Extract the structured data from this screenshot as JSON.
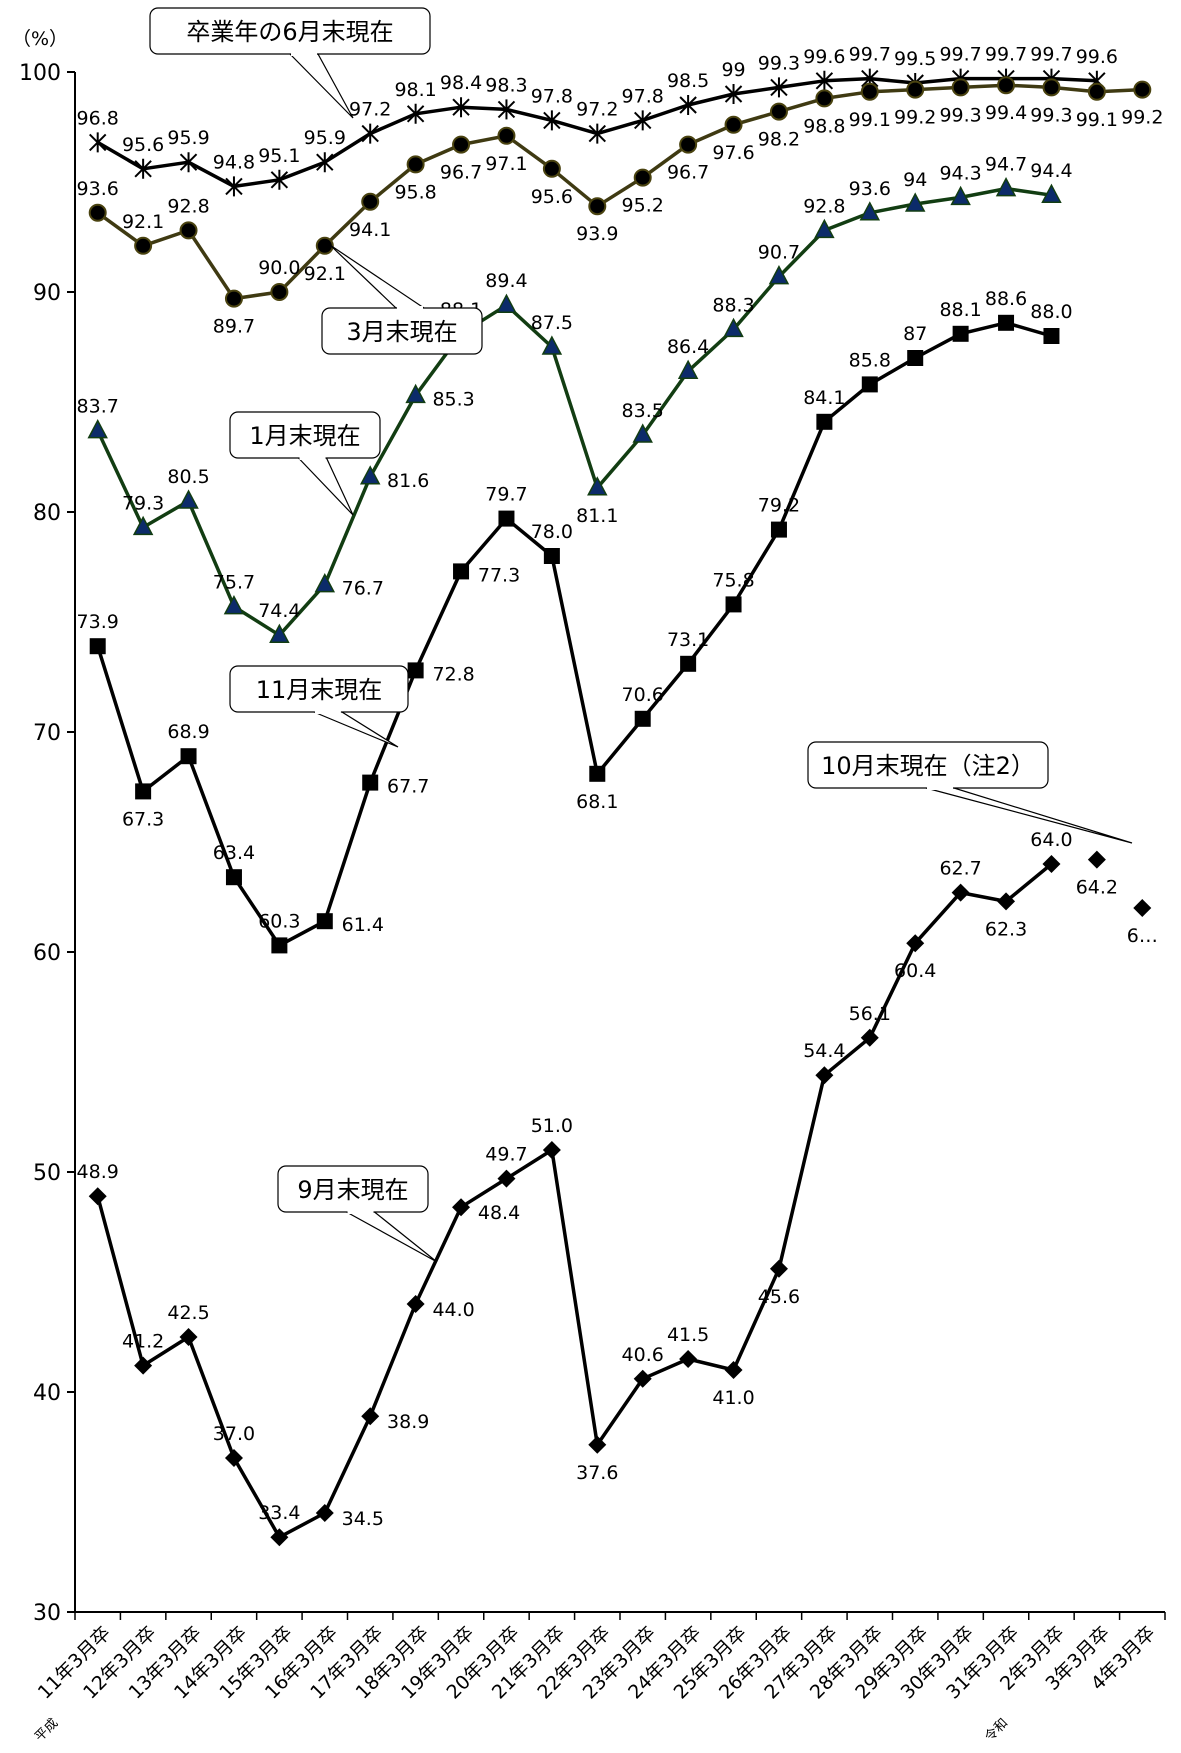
{
  "chart_data": {
    "type": "line",
    "unit": "（%）",
    "ylim": [
      30,
      100
    ],
    "yticks": [
      30,
      40,
      50,
      60,
      70,
      80,
      90,
      100
    ],
    "categories": [
      "11年3月卒",
      "12年3月卒",
      "13年3月卒",
      "14年3月卒",
      "15年3月卒",
      "16年3月卒",
      "17年3月卒",
      "18年3月卒",
      "19年3月卒",
      "20年3月卒",
      "21年3月卒",
      "22年3月卒",
      "23年3月卒",
      "24年3月卒",
      "25年3月卒",
      "26年3月卒",
      "27年3月卒",
      "28年3月卒",
      "29年3月卒",
      "30年3月卒",
      "31年3月卒",
      "2年3月卒",
      "3年3月卒",
      "4年3月卒"
    ],
    "era_labels": {
      "heisei": "平成",
      "reiwa": "令和"
    },
    "series": [
      {
        "name": "卒業年の6月末現在",
        "marker": "star",
        "line": "#000000",
        "fill": "#000000",
        "values": [
          96.8,
          95.6,
          95.9,
          94.8,
          95.1,
          95.9,
          97.2,
          98.1,
          98.4,
          98.3,
          97.8,
          97.2,
          97.8,
          98.5,
          99,
          99.3,
          99.6,
          99.7,
          99.5,
          99.7,
          99.7,
          99.7,
          99.6,
          null
        ],
        "labels": [
          "96.8",
          "95.6",
          "95.9",
          "94.8",
          "95.1",
          "95.9",
          "97.2",
          "98.1",
          "98.4",
          "98.3",
          "97.8",
          "97.2",
          "97.8",
          "98.5",
          "99",
          "99.3",
          "99.6",
          "99.7",
          "99.5",
          "99.7",
          "99.7",
          "99.7",
          "99.6",
          null
        ]
      },
      {
        "name": "3月末現在",
        "marker": "circle",
        "line": "#3f3a12",
        "fill": "#000000",
        "values": [
          93.6,
          92.1,
          92.8,
          89.7,
          90.0,
          92.1,
          94.1,
          95.8,
          96.7,
          97.1,
          95.6,
          93.9,
          95.2,
          96.7,
          97.6,
          98.2,
          98.8,
          99.1,
          99.2,
          99.3,
          99.4,
          99.3,
          99.1,
          99.2
        ],
        "labels": [
          "93.6",
          "92.1",
          "92.8",
          "89.7",
          "90.0",
          "92.1",
          "94.1",
          "95.8",
          "96.7",
          "97.1",
          "95.6",
          "93.9",
          "95.2",
          "96.7",
          "97.6",
          "98.2",
          "98.8",
          "99.1",
          "99.2",
          "99.3",
          "99.4",
          "99.3",
          "99.1",
          "99.2"
        ]
      },
      {
        "name": "1月末現在",
        "marker": "triangle",
        "line": "#123d12",
        "fill": "#0c2b6a",
        "values": [
          83.7,
          79.3,
          80.5,
          75.7,
          74.4,
          76.7,
          81.6,
          85.3,
          88.1,
          89.4,
          87.5,
          81.1,
          83.5,
          86.4,
          88.3,
          90.7,
          92.8,
          93.6,
          94,
          94.3,
          94.7,
          94.4,
          null,
          null
        ],
        "labels": [
          "83.7",
          "79.3",
          "80.5",
          "75.7",
          "74.4",
          "76.7",
          "81.6",
          "85.3",
          "88.1",
          "89.4",
          "87.5",
          "81.1",
          "83.5",
          "86.4",
          "88.3",
          "90.7",
          "92.8",
          "93.6",
          "94",
          "94.3",
          "94.7",
          "94.4",
          null,
          null
        ]
      },
      {
        "name": "11月末現在",
        "marker": "square",
        "line": "#000000",
        "fill": "#000000",
        "values": [
          73.9,
          67.3,
          68.9,
          63.4,
          60.3,
          61.4,
          67.7,
          72.8,
          77.3,
          79.7,
          78.0,
          68.1,
          70.6,
          73.1,
          75.8,
          79.2,
          84.1,
          85.8,
          87,
          88.1,
          88.6,
          88.0,
          null,
          null
        ],
        "labels": [
          "73.9",
          "67.3",
          "68.9",
          "63.4",
          "60.3",
          "61.4",
          "67.7",
          "72.8",
          "77.3",
          "79.7",
          "78.0",
          "68.1",
          "70.6",
          "73.1",
          "75.8",
          "79.2",
          "84.1",
          "85.8",
          "87",
          "88.1",
          "88.6",
          "88.0",
          null,
          null
        ]
      },
      {
        "name": "9月末現在",
        "marker": "diamond",
        "line": "#000000",
        "fill": "#000000",
        "values": [
          48.9,
          41.2,
          42.5,
          37.0,
          33.4,
          34.5,
          38.9,
          44.0,
          48.4,
          49.7,
          51.0,
          37.6,
          40.6,
          41.5,
          41.0,
          45.6,
          54.4,
          56.1,
          60.4,
          62.7,
          62.3,
          64.0,
          null,
          null
        ],
        "labels": [
          "48.9",
          "41.2",
          "42.5",
          "37.0",
          "33.4",
          "34.5",
          "38.9",
          "44.0",
          "48.4",
          "49.7",
          "51.0",
          "37.6",
          "40.6",
          "41.5",
          "41.0",
          "45.6",
          "54.4",
          "56.1",
          "60.4",
          "62.7",
          "62.3",
          "64.0",
          null,
          null
        ]
      },
      {
        "name": "10月末現在（注2）",
        "marker": "diamond",
        "line": "none",
        "fill": "#000000",
        "values": [
          null,
          null,
          null,
          null,
          null,
          null,
          null,
          null,
          null,
          null,
          null,
          null,
          null,
          null,
          null,
          null,
          null,
          null,
          null,
          null,
          null,
          null,
          64.2,
          62.0
        ],
        "labels": [
          null,
          null,
          null,
          null,
          null,
          null,
          null,
          null,
          null,
          null,
          null,
          null,
          null,
          null,
          null,
          null,
          null,
          null,
          null,
          null,
          null,
          null,
          "64.2",
          "6…"
        ]
      }
    ]
  }
}
